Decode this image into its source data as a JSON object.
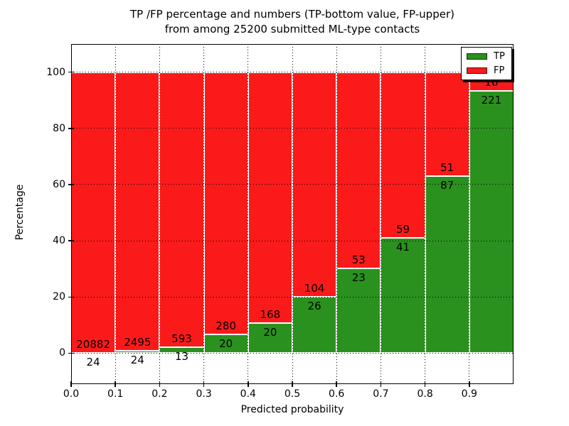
{
  "chart_data": {
    "type": "bar",
    "stacked": true,
    "normalized_to_percent": true,
    "title_line1": "TP /FP percentage and numbers (TP-bottom value, FP-upper)",
    "title_line2": "from among 25200 submitted ML-type contacts",
    "xlabel": "Predicted probability",
    "ylabel": "Percentage",
    "categories": [
      "0.0-0.1",
      "0.1-0.2",
      "0.2-0.3",
      "0.3-0.4",
      "0.4-0.5",
      "0.5-0.6",
      "0.6-0.7",
      "0.7-0.8",
      "0.8-0.9",
      "0.9-1.0"
    ],
    "series": [
      {
        "name": "TP",
        "color": "#2a911e",
        "values": [
          24,
          24,
          13,
          20,
          20,
          26,
          23,
          41,
          87,
          221
        ]
      },
      {
        "name": "FP",
        "color": "#fb1a1a",
        "values": [
          20882,
          2495,
          593,
          280,
          168,
          104,
          53,
          59,
          51,
          16
        ]
      }
    ],
    "total_contacts": 25200,
    "xticks": [
      "0.0",
      "0.1",
      "0.2",
      "0.3",
      "0.4",
      "0.5",
      "0.6",
      "0.7",
      "0.8",
      "0.9"
    ],
    "yticks": [
      "0",
      "20",
      "40",
      "60",
      "80",
      "100"
    ],
    "xlim": [
      0.0,
      1.0
    ],
    "ylim": [
      -11,
      110
    ],
    "grid": "dotted both axes",
    "bar_edge_color": "#ffffff",
    "legend": {
      "position": "upper-right",
      "entries": [
        "TP",
        "FP"
      ]
    }
  }
}
